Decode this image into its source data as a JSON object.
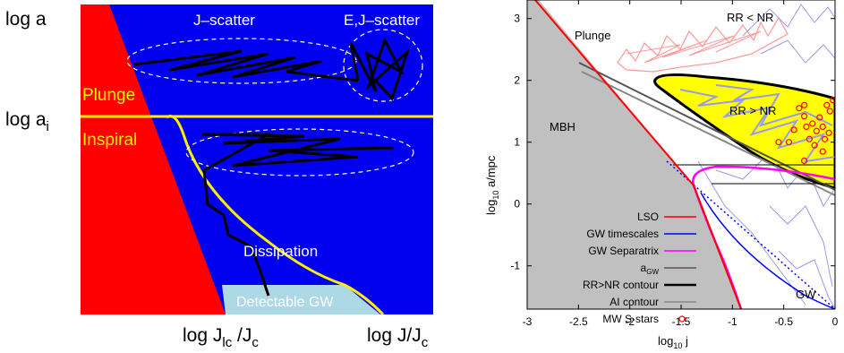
{
  "left_panel": {
    "y_label_top": "log a",
    "y_label_ai": "log a",
    "y_label_ai_sub": "i",
    "region_j_scatter": "J–scatter",
    "region_ej_scatter": "E,J–scatter",
    "region_plunge": "Plunge",
    "region_inspiral": "Inspiral",
    "region_dissipation": "Dissipation",
    "region_detectable": "Detectable GW",
    "x_label_lc_pre": "log J",
    "x_label_lc_sub": "lc",
    "x_label_lc_post": " /J",
    "x_label_lc_sub2": "c",
    "x_label_right_pre": "log J/J",
    "x_label_right_sub": "c",
    "colors": {
      "plunge_wedge": "#ff0000",
      "field": "#0000ee",
      "separatrix": "#ffee00",
      "detectable": "#add8e6",
      "track": "#000000"
    }
  },
  "right_panel": {
    "xlabel_pre": "log",
    "xlabel_sub": "10",
    "xlabel_post": " j",
    "ylabel_pre": "log",
    "ylabel_sub": "10",
    "ylabel_post": " a/mpc",
    "x_ticks": [
      "-3",
      "-2.5",
      "-2",
      "-1.5",
      "-1",
      "-0.5",
      "0"
    ],
    "y_ticks": [
      "-1",
      "0",
      "1",
      "2",
      "3"
    ],
    "x_tick_values": [
      -3,
      -2.5,
      -2,
      -1.5,
      -1,
      -0.5,
      0
    ],
    "y_tick_values": [
      -1,
      0,
      1,
      2,
      3
    ],
    "xlim": [
      -3,
      0
    ],
    "ylim": [
      -1.7,
      3.3
    ],
    "region_labels": {
      "rr_lt_nr": "RR < NR",
      "plunge": "Plunge",
      "rr_gt_nr": "RR > NR",
      "mbh": "MBH",
      "gw": "GW"
    },
    "legend": [
      {
        "label": "LSO",
        "color": "#ff0000"
      },
      {
        "label": "GW timescales",
        "color": "#0000ff"
      },
      {
        "label": "GW Separatrix",
        "color": "#ff00ff"
      },
      {
        "label": "a",
        "sub": "GW",
        "color": "#555555"
      },
      {
        "label": "RR>NR contour",
        "color": "#000000"
      },
      {
        "label": "AI contour",
        "color": "#888888"
      },
      {
        "label": "MW S-stars",
        "color": "#ff0000",
        "marker": "circle"
      }
    ],
    "lso_line": [
      [
        -3,
        3.93
      ],
      [
        -1.65,
        0.6
      ],
      [
        -1.2,
        -1.7
      ]
    ],
    "s_stars": [
      [
        -0.35,
        1.55
      ],
      [
        -0.3,
        1.42
      ],
      [
        -0.28,
        1.25
      ],
      [
        -0.22,
        1.3
      ],
      [
        -0.18,
        1.18
      ],
      [
        -0.15,
        1.4
      ],
      [
        -0.12,
        1.25
      ],
      [
        -0.1,
        1.05
      ],
      [
        -0.06,
        1.15
      ],
      [
        -0.05,
        1.5
      ],
      [
        -0.25,
        1.05
      ],
      [
        -0.4,
        1.2
      ],
      [
        -0.45,
        1.0
      ],
      [
        -0.55,
        1.0
      ],
      [
        -0.2,
        0.95
      ],
      [
        -0.08,
        1.6
      ],
      [
        -0.02,
        1.68
      ],
      [
        -0.12,
        0.85
      ],
      [
        -0.3,
        0.7
      ],
      [
        -0.3,
        1.6
      ]
    ]
  }
}
